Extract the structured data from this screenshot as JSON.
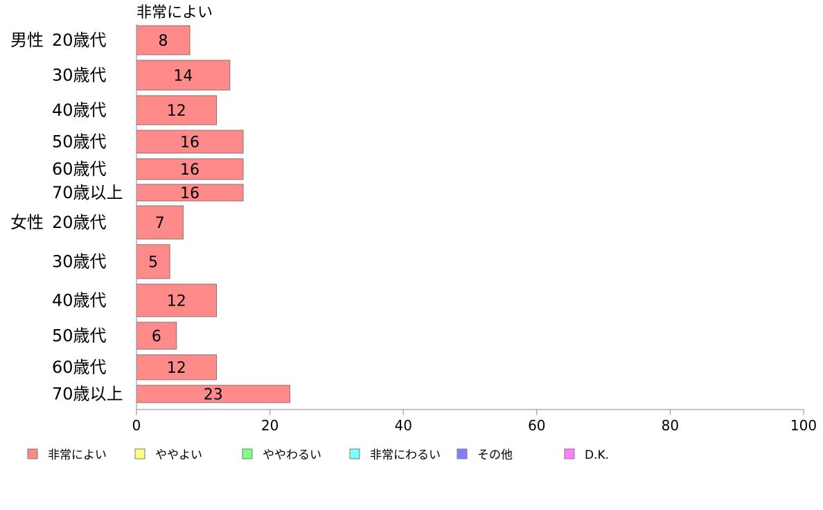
{
  "chart_data": {
    "type": "bar",
    "orientation": "horizontal",
    "stacked": true,
    "series": [
      {
        "name": "非常によい",
        "color": "#ff8a8a",
        "values": [
          8,
          14,
          12,
          16,
          16,
          16,
          7,
          5,
          12,
          6,
          12,
          23
        ]
      },
      {
        "name": "ややよい",
        "color": "#ffff80",
        "values": []
      },
      {
        "name": "ややわるい",
        "color": "#80ff80",
        "values": []
      },
      {
        "name": "非常にわるい",
        "color": "#80ffff",
        "values": []
      },
      {
        "name": "その他",
        "color": "#8080ff",
        "values": []
      },
      {
        "name": "D.K.",
        "color": "#ff80ff",
        "values": []
      }
    ],
    "groups": [
      {
        "label": "男性",
        "categories": [
          "20歳代",
          "30歳代",
          "40歳代",
          "50歳代",
          "60歳代",
          "70歳以上"
        ]
      },
      {
        "label": "女性",
        "categories": [
          "20歳代",
          "30歳代",
          "40歳代",
          "50歳代",
          "60歳代",
          "70歳以上"
        ]
      }
    ],
    "top_segment_label": "非常によい",
    "xlim": [
      0,
      100
    ],
    "xticks": [
      0,
      20,
      40,
      60,
      80,
      100
    ],
    "grid": false,
    "legend_position": "bottom"
  }
}
